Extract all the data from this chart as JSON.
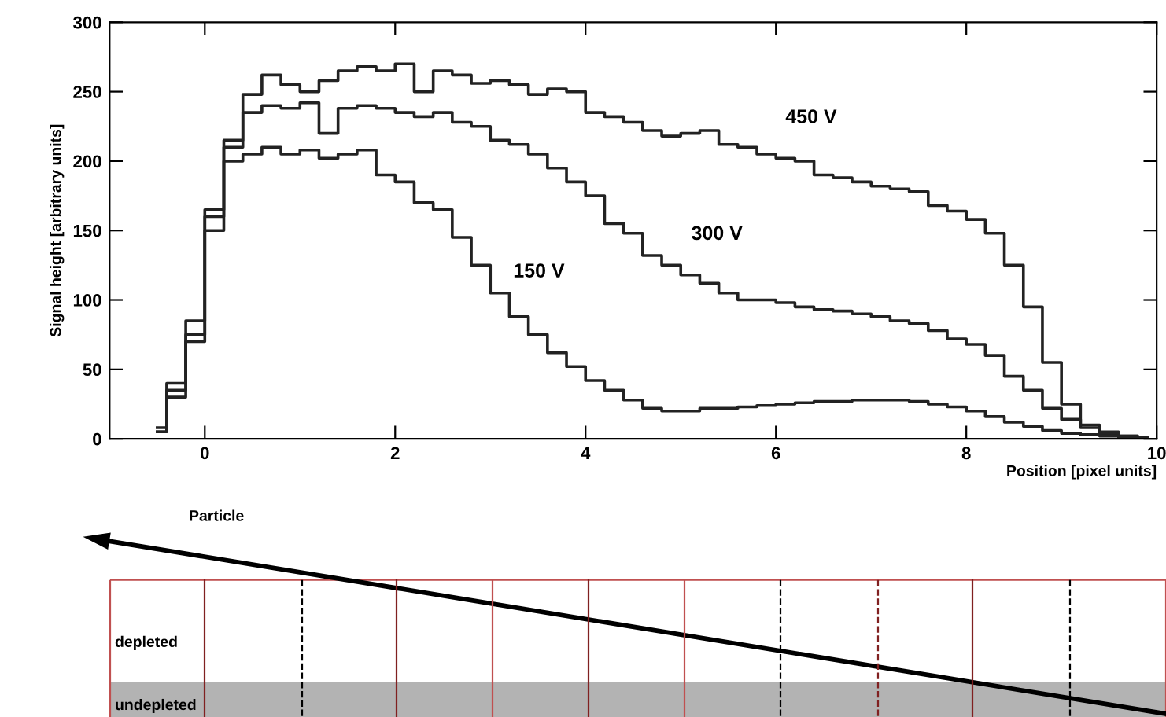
{
  "chart_data": {
    "type": "step",
    "xlabel": "Position [pixel units]",
    "ylabel": "Signal height [arbitrary units]",
    "x": [
      -0.5,
      -0.3,
      -0.1,
      0.1,
      0.3,
      0.5,
      0.7,
      0.9,
      1.1,
      1.3,
      1.5,
      1.7,
      1.9,
      2.1,
      2.3,
      2.5,
      2.7,
      2.9,
      3.1,
      3.3,
      3.5,
      3.7,
      3.9,
      4.1,
      4.3,
      4.5,
      4.7,
      4.9,
      5.1,
      5.3,
      5.5,
      5.7,
      5.9,
      6.1,
      6.3,
      6.5,
      6.7,
      6.9,
      7.1,
      7.3,
      7.5,
      7.7,
      7.9,
      8.1,
      8.3,
      8.5,
      8.7,
      8.9,
      9.1,
      9.3,
      9.5,
      9.7,
      9.9
    ],
    "series": [
      {
        "color": "#222222",
        "values": [
          8,
          40,
          85,
          165,
          215,
          248,
          262,
          255,
          250,
          258,
          265,
          268,
          265,
          270,
          250,
          265,
          262,
          256,
          258,
          255,
          248,
          252,
          250,
          235,
          232,
          228,
          222,
          218,
          220,
          222,
          212,
          210,
          205,
          202,
          200,
          190,
          188,
          185,
          182,
          180,
          178,
          168,
          164,
          158,
          148,
          125,
          95,
          55,
          25,
          10,
          5,
          2,
          1
        ]
      },
      {
        "color": "#222222",
        "values": [
          5,
          35,
          75,
          160,
          210,
          235,
          240,
          238,
          242,
          220,
          238,
          240,
          238,
          235,
          232,
          235,
          228,
          225,
          215,
          212,
          205,
          195,
          185,
          175,
          155,
          148,
          132,
          125,
          118,
          112,
          105,
          100,
          100,
          98,
          95,
          93,
          92,
          90,
          88,
          85,
          83,
          78,
          72,
          68,
          60,
          45,
          35,
          22,
          14,
          8,
          4,
          2,
          1
        ]
      },
      {
        "color": "#222222",
        "values": [
          5,
          30,
          70,
          150,
          200,
          205,
          210,
          205,
          208,
          202,
          205,
          208,
          190,
          185,
          170,
          165,
          145,
          125,
          105,
          88,
          75,
          62,
          52,
          42,
          35,
          28,
          22,
          20,
          20,
          22,
          22,
          23,
          24,
          25,
          26,
          27,
          27,
          28,
          28,
          28,
          27,
          25,
          23,
          20,
          16,
          12,
          9,
          6,
          4,
          3,
          2,
          1,
          1
        ]
      }
    ],
    "xlim": [
      -1,
      10
    ],
    "xticks": [
      0,
      2,
      4,
      6,
      8,
      10
    ],
    "ylim": [
      0,
      300
    ],
    "yticks": [
      0,
      50,
      100,
      150,
      200,
      250,
      300
    ],
    "grid": false,
    "annotations": [
      "450 V",
      "300 V",
      "150 V",
      "Particle",
      "depleted",
      "undepleted"
    ]
  }
}
